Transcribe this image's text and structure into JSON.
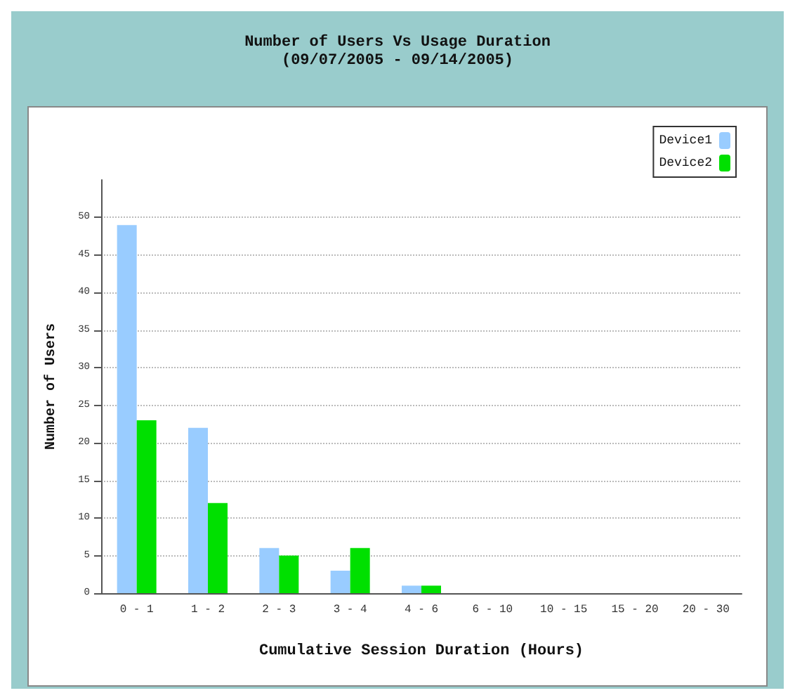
{
  "chart_data": {
    "type": "bar",
    "title": "Number of Users Vs Usage Duration",
    "subtitle": "(09/07/2005 - 09/14/2005)",
    "xlabel": "Cumulative Session Duration (Hours)",
    "ylabel": "Number of Users",
    "categories": [
      "0 - 1",
      "1 - 2",
      "2 - 3",
      "3 - 4",
      "4 - 6",
      "6 - 10",
      "10 - 15",
      "15 - 20",
      "20 - 30"
    ],
    "series": [
      {
        "name": "Device1",
        "color": "#99ccff",
        "values": [
          49,
          22,
          6,
          3,
          1,
          0,
          0,
          0,
          0
        ]
      },
      {
        "name": "Device2",
        "color": "#00e000",
        "values": [
          23,
          12,
          5,
          6,
          1,
          0,
          0,
          0,
          0
        ]
      }
    ],
    "ylim": [
      0,
      55
    ],
    "yticks": [
      0,
      5,
      10,
      15,
      20,
      25,
      30,
      35,
      40,
      45,
      50
    ],
    "grid": "y",
    "legend": "top right"
  }
}
